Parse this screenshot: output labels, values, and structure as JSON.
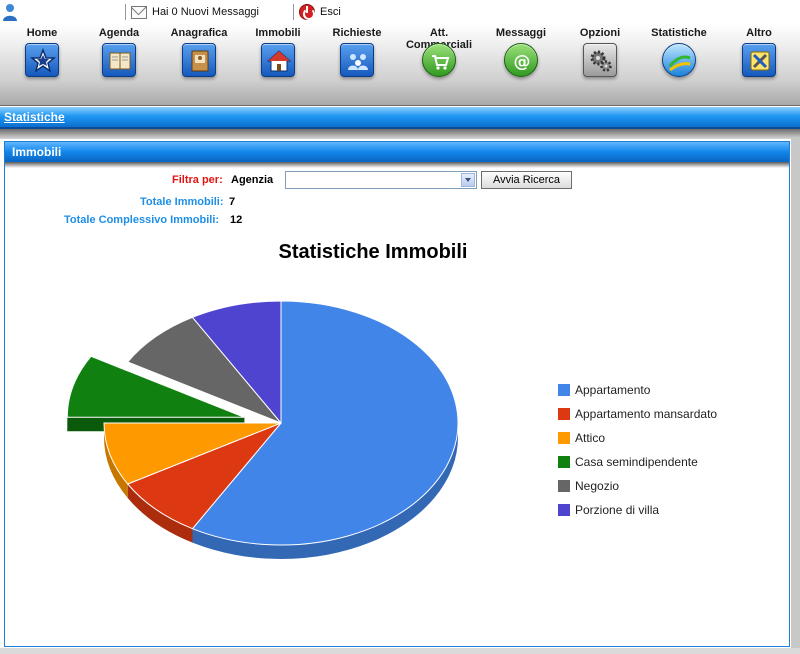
{
  "topbar": {
    "messages_text": "Hai 0 Nuovi Messaggi",
    "logout_text": "Esci"
  },
  "nav": {
    "items": [
      {
        "label": "Home",
        "icon": "home-star-icon"
      },
      {
        "label": "Agenda",
        "icon": "agenda-book-icon"
      },
      {
        "label": "Anagrafica",
        "icon": "address-book-icon"
      },
      {
        "label": "Immobili",
        "icon": "house-icon"
      },
      {
        "label": "Richieste",
        "icon": "requests-people-icon"
      },
      {
        "label": "Att. Commerciali",
        "icon": "cart-icon"
      },
      {
        "label": "Messaggi",
        "icon": "at-mail-icon"
      },
      {
        "label": "Opzioni",
        "icon": "gears-icon"
      },
      {
        "label": "Statistiche",
        "icon": "stats-icon"
      },
      {
        "label": "Altro",
        "icon": "tools-icon"
      }
    ]
  },
  "section": {
    "title": "Statistiche"
  },
  "panel": {
    "title": "Immobili",
    "filter_label": "Filtra per:",
    "filter_field_label": "Agenzia",
    "filter_value": "",
    "search_button": "Avvia Ricerca",
    "totale_immobili_label": "Totale Immobili:",
    "totale_immobili_value": "7",
    "totale_complessivo_label": "Totale Complessivo Immobili:",
    "totale_complessivo_value": "12"
  },
  "colors": {
    "accent_blue": "#1186ea",
    "filter_red": "#e31414",
    "totals_blue": "#1f8fe6"
  },
  "chart_data": {
    "type": "pie",
    "title": "Statistiche Immobili",
    "legend_position": "right",
    "series": [
      {
        "name": "Appartamento",
        "value": 7,
        "color": "#4285e8"
      },
      {
        "name": "Appartamento mansardato",
        "value": 1,
        "color": "#dc3912"
      },
      {
        "name": "Attico",
        "value": 1,
        "color": "#ff9900"
      },
      {
        "name": "Casa semindipendente",
        "value": 1,
        "color": "#108010"
      },
      {
        "name": "Negozio",
        "value": 1,
        "color": "#666666"
      },
      {
        "name": "Porzione di villa",
        "value": 1,
        "color": "#4e44cf"
      }
    ],
    "exploded_slice": "Casa semindipendente",
    "three_d": true
  }
}
